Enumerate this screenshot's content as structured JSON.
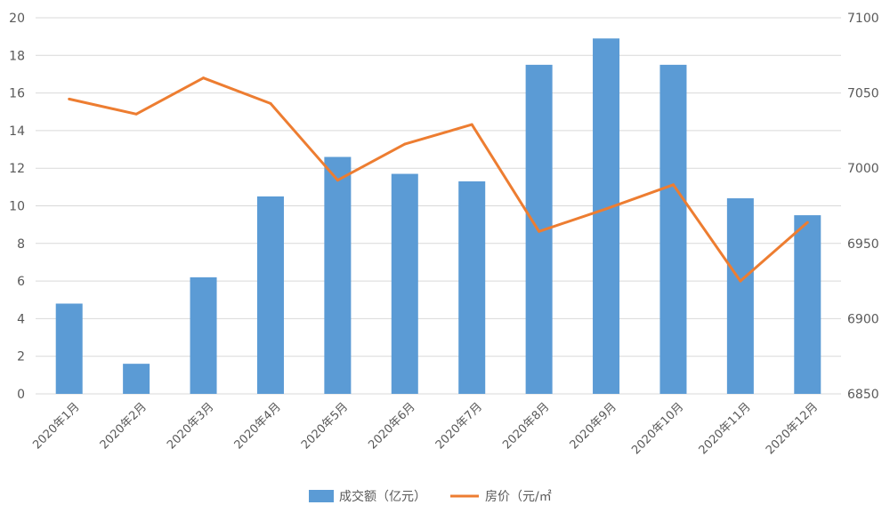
{
  "chart_data": {
    "type": "bar+line",
    "categories": [
      "2020年1月",
      "2020年2月",
      "2020年3月",
      "2020年4月",
      "2020年5月",
      "2020年6月",
      "2020年7月",
      "2020年8月",
      "2020年9月",
      "2020年10月",
      "2020年11月",
      "2020年12月"
    ],
    "series": [
      {
        "name": "成交额（亿元）",
        "type": "bar",
        "axis": "left",
        "color": "#5b9bd5",
        "values": [
          4.8,
          1.6,
          6.2,
          10.5,
          12.6,
          11.7,
          11.3,
          17.5,
          18.9,
          17.5,
          10.4,
          9.5
        ]
      },
      {
        "name": "房价（元/㎡",
        "type": "line",
        "axis": "right",
        "color": "#ed7d31",
        "values": [
          7046,
          7036,
          7060,
          7043,
          6992,
          7016,
          7029,
          6958,
          6973,
          6989,
          6925,
          6964
        ]
      }
    ],
    "y_left": {
      "min": 0,
      "max": 20,
      "step": 2,
      "ticks": [
        "0",
        "2",
        "4",
        "6",
        "8",
        "10",
        "12",
        "14",
        "16",
        "18",
        "20"
      ]
    },
    "y_right": {
      "min": 6850,
      "max": 7100,
      "step": 50,
      "ticks": [
        "6850",
        "6900",
        "6950",
        "7000",
        "7050",
        "7100"
      ]
    },
    "grid": true,
    "legend_position": "bottom"
  }
}
